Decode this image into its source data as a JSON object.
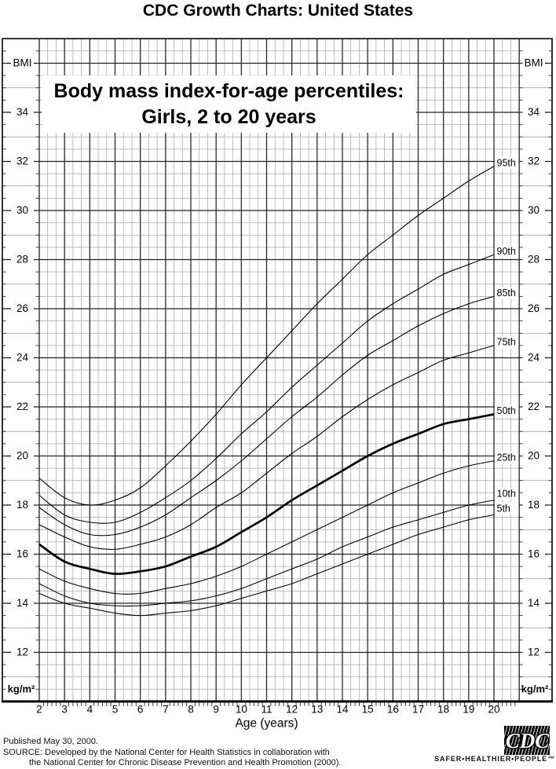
{
  "header": {
    "title": "CDC Growth Charts: United States"
  },
  "chart": {
    "title_line1": "Body mass index-for-age percentiles:",
    "title_line2": "Girls, 2 to 20 years",
    "y_axis_name": "BMI",
    "y_axis_unit": "kg/m²",
    "x_axis_label": "Age (years)"
  },
  "chart_data": {
    "type": "line",
    "title": "Body mass index-for-age percentiles: Girls, 2 to 20 years",
    "xlabel": "Age (years)",
    "ylabel": "BMI (kg/m²)",
    "x": [
      2,
      3,
      4,
      5,
      6,
      7,
      8,
      9,
      10,
      11,
      12,
      13,
      14,
      15,
      16,
      17,
      18,
      19,
      20
    ],
    "series": [
      {
        "name": "5th",
        "values": [
          14.4,
          14.0,
          13.8,
          13.6,
          13.5,
          13.6,
          13.7,
          13.9,
          14.2,
          14.5,
          14.8,
          15.2,
          15.6,
          16.0,
          16.4,
          16.8,
          17.1,
          17.4,
          17.6
        ]
      },
      {
        "name": "10th",
        "values": [
          14.8,
          14.3,
          14.0,
          13.9,
          13.9,
          14.0,
          14.1,
          14.3,
          14.6,
          15.0,
          15.4,
          15.8,
          16.3,
          16.7,
          17.1,
          17.4,
          17.7,
          18.0,
          18.2
        ]
      },
      {
        "name": "25th",
        "values": [
          15.4,
          14.9,
          14.6,
          14.4,
          14.4,
          14.6,
          14.8,
          15.1,
          15.5,
          16.0,
          16.5,
          17.0,
          17.5,
          18.0,
          18.5,
          18.9,
          19.3,
          19.6,
          19.8
        ]
      },
      {
        "name": "50th",
        "values": [
          16.4,
          15.7,
          15.4,
          15.2,
          15.3,
          15.5,
          15.9,
          16.3,
          16.9,
          17.5,
          18.2,
          18.8,
          19.4,
          20.0,
          20.5,
          20.9,
          21.3,
          21.5,
          21.7
        ]
      },
      {
        "name": "75th",
        "values": [
          17.2,
          16.7,
          16.3,
          16.2,
          16.4,
          16.7,
          17.2,
          17.9,
          18.5,
          19.3,
          20.1,
          20.8,
          21.6,
          22.3,
          22.9,
          23.4,
          23.9,
          24.2,
          24.5
        ]
      },
      {
        "name": "85th",
        "values": [
          17.9,
          17.2,
          16.8,
          16.8,
          17.1,
          17.6,
          18.3,
          19.0,
          19.8,
          20.7,
          21.6,
          22.4,
          23.3,
          24.1,
          24.7,
          25.3,
          25.8,
          26.2,
          26.5
        ]
      },
      {
        "name": "90th",
        "values": [
          18.4,
          17.6,
          17.3,
          17.3,
          17.7,
          18.3,
          19.0,
          19.9,
          20.9,
          21.8,
          22.8,
          23.7,
          24.6,
          25.5,
          26.2,
          26.8,
          27.4,
          27.8,
          28.2
        ]
      },
      {
        "name": "95th",
        "values": [
          19.1,
          18.3,
          18.0,
          18.2,
          18.7,
          19.6,
          20.6,
          21.7,
          22.9,
          24.0,
          25.1,
          26.2,
          27.2,
          28.2,
          29.0,
          29.8,
          30.5,
          31.2,
          31.8
        ]
      }
    ],
    "x_ticks": [
      "2",
      "3",
      "4",
      "5",
      "6",
      "7",
      "8",
      "9",
      "10",
      "11",
      "12",
      "13",
      "14",
      "15",
      "16",
      "17",
      "18",
      "19",
      "20"
    ],
    "y_ticks": [
      "12",
      "14",
      "16",
      "18",
      "20",
      "22",
      "24",
      "26",
      "28",
      "30",
      "32",
      "34"
    ],
    "y_tick_values": [
      12,
      14,
      16,
      18,
      20,
      22,
      24,
      26,
      28,
      30,
      32,
      34
    ],
    "xlim": [
      2,
      21
    ],
    "ylim": [
      10,
      37
    ],
    "grid": "major: 1 year / 2 BMI units; minor: 4 months / 0.5 BMI units",
    "legend_position": "labels at right end of each curve",
    "highlighted_series": "50th"
  },
  "footer": {
    "line1": "Published May 30, 2000.",
    "line2": "SOURCE: Developed by the National Center for Health Statistics in collaboration with",
    "line3": "the National Center for Chronic Disease Prevention and Health Promotion (2000)."
  },
  "logo": {
    "text": "CDC",
    "tagline": "SAFER•HEALTHIER•PEOPLE™"
  }
}
